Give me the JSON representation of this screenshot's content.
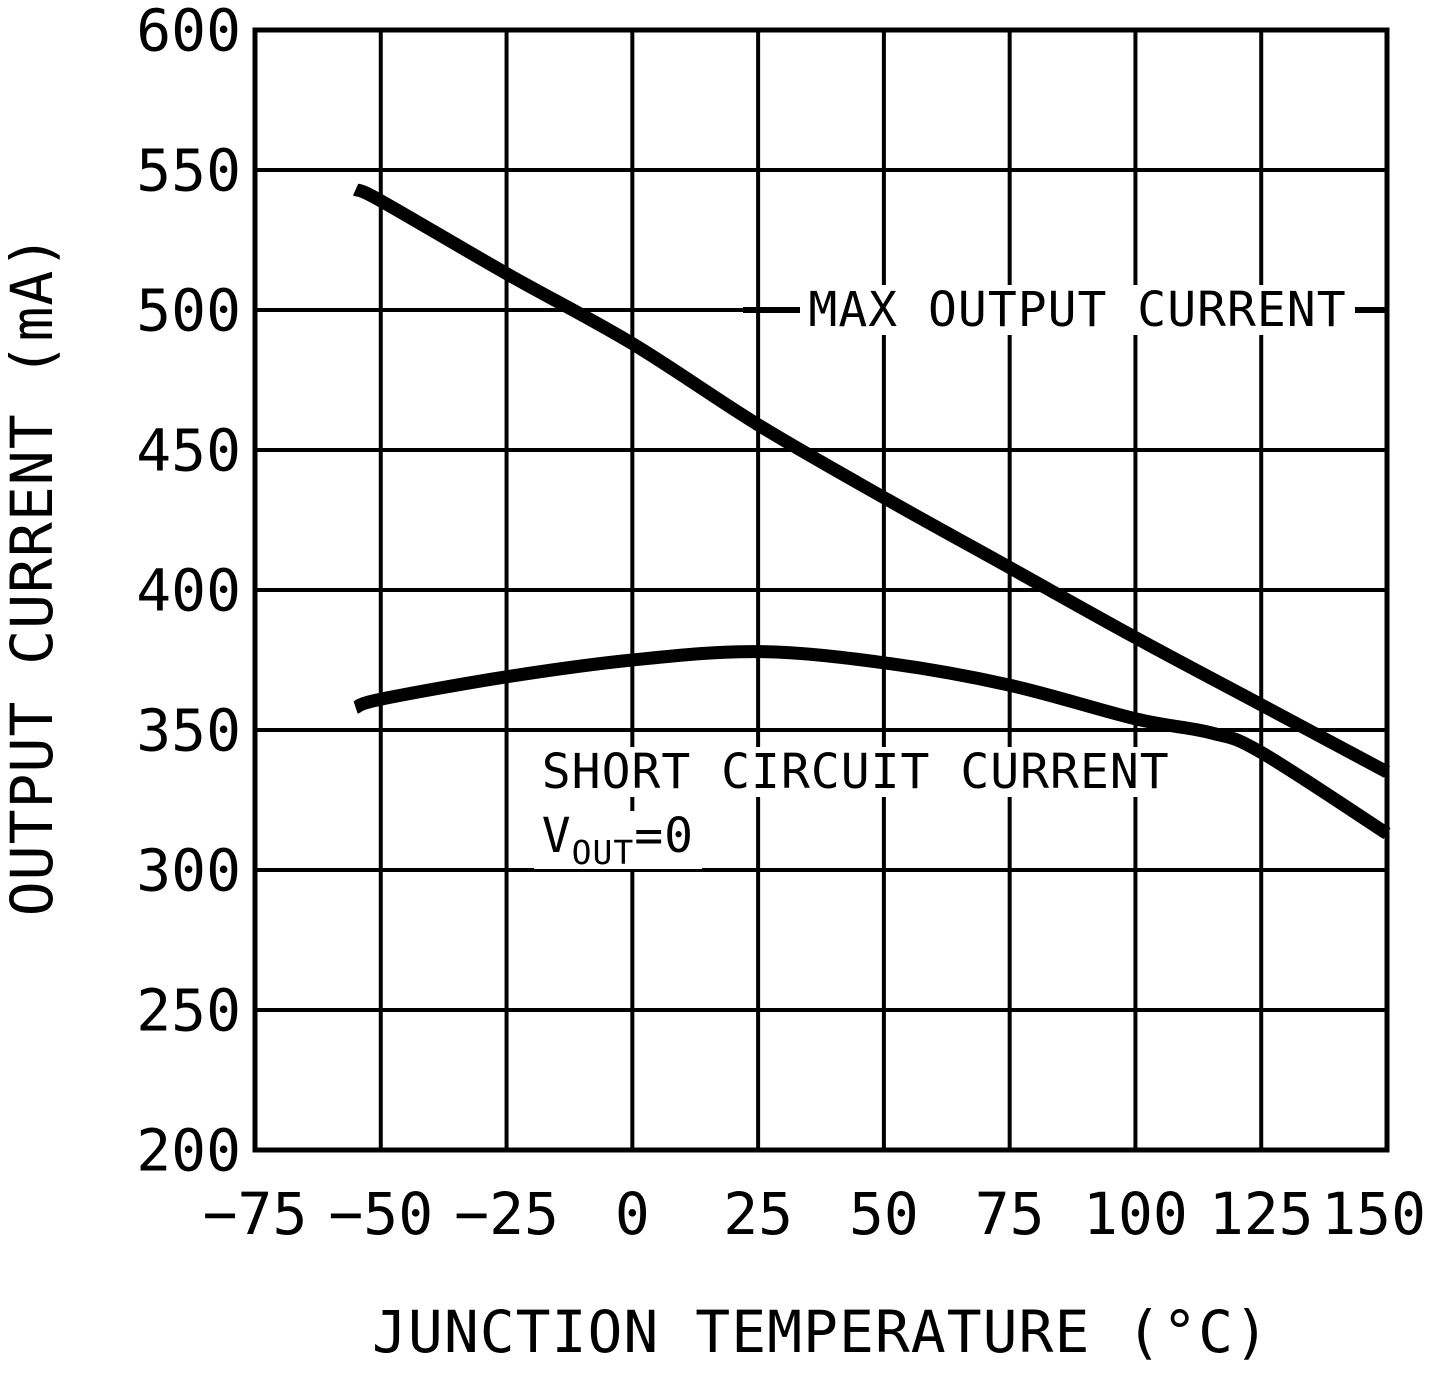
{
  "page": {
    "background": "#ffffff",
    "ink": "#000000"
  },
  "chart_data": {
    "type": "line",
    "title": "",
    "xlabel": "JUNCTION TEMPERATURE (°C)",
    "ylabel": "OUTPUT CURRENT (mA)",
    "xlim": [
      -75,
      150
    ],
    "ylim": [
      200,
      600
    ],
    "x_ticks": [
      -75,
      -50,
      -25,
      0,
      25,
      50,
      75,
      100,
      125,
      150
    ],
    "y_ticks": [
      200,
      250,
      300,
      350,
      400,
      450,
      500,
      550,
      600
    ],
    "grid": true,
    "legend_position": "none",
    "line_color": "#000000",
    "series": [
      {
        "name": "MAX OUTPUT CURRENT",
        "x": [
          -55,
          -50,
          -25,
          0,
          25,
          50,
          75,
          100,
          125,
          150
        ],
        "values": [
          543,
          539,
          513,
          488,
          459,
          433,
          408,
          383,
          359,
          335
        ]
      },
      {
        "name": "SHORT CIRCUIT CURRENT VOUT=0",
        "x": [
          -55,
          -50,
          -25,
          0,
          25,
          50,
          75,
          100,
          115,
          125,
          150
        ],
        "values": [
          358,
          361,
          369,
          375,
          378,
          374,
          366,
          354,
          349,
          342,
          313
        ]
      }
    ],
    "annotations": [
      {
        "id": "max-output-label",
        "text": "MAX OUTPUT CURRENT",
        "x": 35,
        "y": 500,
        "leader_left": [
          22,
          33.5
        ],
        "leader_right": [
          141.5,
          150
        ]
      },
      {
        "id": "short-circuit-label",
        "text": "SHORT CIRCUIT CURRENT",
        "x": -18,
        "y": 335
      },
      {
        "id": "vout-condition-label",
        "x": -18,
        "y": 312,
        "parts": {
          "prefix": "V",
          "sub": "OUT",
          "suffix": "=0"
        }
      }
    ]
  }
}
